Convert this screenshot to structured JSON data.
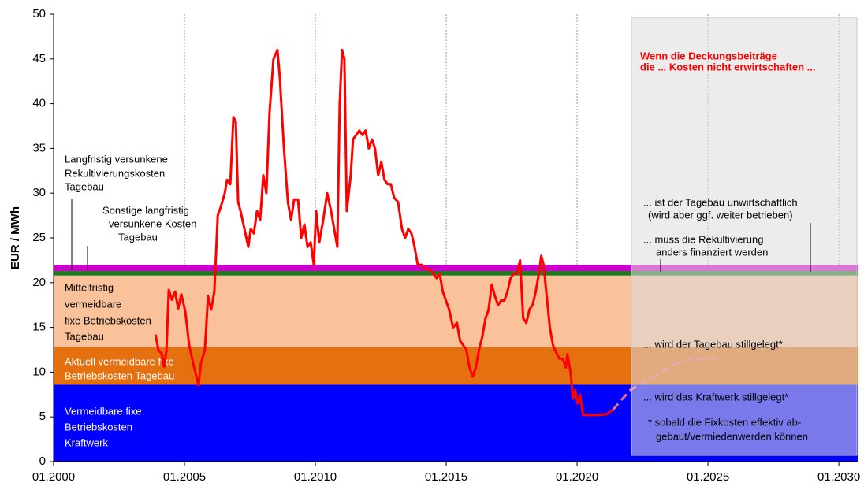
{
  "chart_data": {
    "type": "line",
    "ylabel": "EUR / MWh",
    "ylim": [
      0,
      50
    ],
    "yticks": [
      0,
      5,
      10,
      15,
      20,
      25,
      30,
      35,
      40,
      45,
      50
    ],
    "xlim": [
      2000,
      2030.75
    ],
    "xticks": [
      {
        "value": 2000,
        "label": "01.2000"
      },
      {
        "value": 2005,
        "label": "01.2005"
      },
      {
        "value": 2010,
        "label": "01.2010"
      },
      {
        "value": 2015,
        "label": "01.2015"
      },
      {
        "value": 2020,
        "label": "01.2020"
      },
      {
        "value": 2025,
        "label": "01.2025"
      },
      {
        "value": 2030,
        "label": "01.2030"
      }
    ],
    "grid": "x",
    "bands": [
      {
        "label": [
          "Vermeidbare fixe",
          "Betriebskosten",
          "Kraftwerk"
        ],
        "value": 8.6,
        "color": "#0000ff"
      },
      {
        "label": [
          "Aktuell vermeidbare fixe",
          "Betriebskosten Tagebau"
        ],
        "value": 4.2,
        "color": "#e5700f"
      },
      {
        "label": [
          "Mittelfristig",
          "vermeidbare",
          "fixe Betriebskosten",
          "Tagebau"
        ],
        "value": 8.0,
        "color": "#f9c29a"
      },
      {
        "label": [
          "Sonstige langfristig",
          "versunkene Kosten",
          "Tagebau"
        ],
        "value": 0.5,
        "color": "#1f7a1f"
      },
      {
        "label": [
          "Langfristig versunkene",
          "Rekultivierungskosten",
          "Tagebau"
        ],
        "value": 0.7,
        "color": "#cc00cc"
      }
    ],
    "series": [
      {
        "color": "#ff0000",
        "x": [
          2003.89,
          2004.01,
          2004.13,
          2004.22,
          2004.31,
          2004.4,
          2004.52,
          2004.64,
          2004.76,
          2004.88,
          2005.03,
          2005.18,
          2005.33,
          2005.54,
          2005.63,
          2005.78,
          2005.9,
          2006.02,
          2006.14,
          2006.27,
          2006.39,
          2006.54,
          2006.63,
          2006.75,
          2006.87,
          2006.96,
          2007.05,
          2007.14,
          2007.29,
          2007.44,
          2007.53,
          2007.65,
          2007.77,
          2007.89,
          2008.01,
          2008.13,
          2008.25,
          2008.4,
          2008.55,
          2008.64,
          2008.8,
          2008.95,
          2009.07,
          2009.19,
          2009.34,
          2009.46,
          2009.58,
          2009.7,
          2009.82,
          2009.94,
          2010.03,
          2010.15,
          2010.3,
          2010.45,
          2010.6,
          2010.72,
          2010.84,
          2010.93,
          2011.02,
          2011.11,
          2011.2,
          2011.35,
          2011.44,
          2011.56,
          2011.68,
          2011.8,
          2011.92,
          2012.04,
          2012.16,
          2012.28,
          2012.4,
          2012.52,
          2012.64,
          2012.76,
          2012.88,
          2013.01,
          2013.16,
          2013.31,
          2013.43,
          2013.55,
          2013.67,
          2013.79,
          2013.91,
          2014.06,
          2014.21,
          2014.36,
          2014.51,
          2014.63,
          2014.75,
          2014.87,
          2014.99,
          2015.11,
          2015.26,
          2015.41,
          2015.53,
          2015.65,
          2015.77,
          2015.89,
          2016.01,
          2016.13,
          2016.25,
          2016.38,
          2016.5,
          2016.62,
          2016.74,
          2016.86,
          2016.98,
          2017.1,
          2017.22,
          2017.34,
          2017.46,
          2017.58,
          2017.7,
          2017.82,
          2017.94,
          2018.06,
          2018.18,
          2018.3,
          2018.42,
          2018.54,
          2018.63,
          2018.72,
          2018.84,
          2018.96,
          2019.08,
          2019.2,
          2019.33,
          2019.45,
          2019.57,
          2019.63,
          2019.75,
          2019.84,
          2019.93,
          2020.02,
          2020.11,
          2020.23,
          2020.53,
          2020.83,
          2021.13,
          2021.37
        ],
        "values": [
          14.2,
          12.4,
          12.1,
          10.6,
          12.4,
          19.2,
          18.1,
          19.0,
          17.1,
          18.7,
          16.8,
          13.0,
          11.0,
          8.5,
          11.0,
          12.5,
          18.5,
          17.0,
          19.0,
          27.5,
          28.5,
          30.0,
          31.5,
          31.0,
          38.5,
          38.0,
          29.0,
          28.0,
          26.0,
          24.0,
          26.0,
          25.5,
          28.0,
          27.0,
          32.0,
          30.0,
          39.0,
          45.0,
          46.0,
          43.0,
          35.0,
          29.0,
          27.0,
          29.3,
          29.3,
          25.0,
          26.5,
          24.0,
          24.5,
          22.0,
          28.0,
          24.5,
          27.0,
          30.0,
          28.0,
          26.0,
          24.0,
          40.0,
          46.0,
          45.0,
          28.0,
          32.0,
          36.0,
          36.5,
          37.0,
          36.5,
          37.0,
          35.0,
          36.0,
          35.0,
          32.0,
          33.5,
          31.5,
          31.0,
          31.0,
          29.5,
          29.0,
          26.0,
          25.0,
          26.0,
          25.5,
          24.0,
          22.0,
          22.0,
          21.5,
          21.5,
          21.0,
          20.5,
          21.0,
          19.0,
          18.0,
          17.0,
          15.0,
          15.5,
          13.5,
          13.0,
          12.5,
          10.5,
          9.5,
          10.5,
          12.5,
          14.0,
          16.0,
          17.0,
          19.8,
          18.5,
          17.5,
          18.0,
          18.0,
          19.0,
          20.5,
          21.0,
          21.0,
          22.5,
          16.0,
          15.5,
          17.0,
          17.5,
          19.0,
          21.0,
          23.0,
          22.0,
          18.5,
          15.0,
          13.0,
          12.2,
          11.5,
          11.5,
          10.5,
          12.0,
          10.0,
          7.0,
          8.0,
          6.5,
          7.5,
          5.2,
          5.2,
          5.2,
          5.3,
          5.8
        ]
      },
      {
        "color": "#f07080",
        "dashed": true,
        "x": [
          2021.37,
          2021.73,
          2022.03,
          2022.64,
          2023.24,
          2023.84,
          2024.44,
          2025.34
        ],
        "values": [
          5.8,
          7.0,
          8.0,
          9.0,
          10.0,
          11.0,
          11.5,
          11.5
        ]
      }
    ],
    "annotations": [
      {
        "lines": [
          "Wenn die Deckungsbeiträge",
          "die ... Kosten nicht erwirtschaften ..."
        ],
        "color": "#ff0000"
      },
      {
        "lines": [
          "... ist der Tagebau unwirtschaftlich",
          "(wird aber ggf. weiter betrieben)"
        ]
      },
      {
        "lines": [
          "... muss die Rekultivierung",
          "anders finanziert werden"
        ]
      },
      {
        "lines": [
          "... wird der Tagebau stillgelegt*"
        ]
      },
      {
        "lines": [
          "... wird das Kraftwerk stillgelegt*"
        ]
      },
      {
        "lines": [
          "* sobald die Fixkosten effektiv ab-",
          "gebaut/vermiedenwerden können"
        ]
      }
    ]
  }
}
